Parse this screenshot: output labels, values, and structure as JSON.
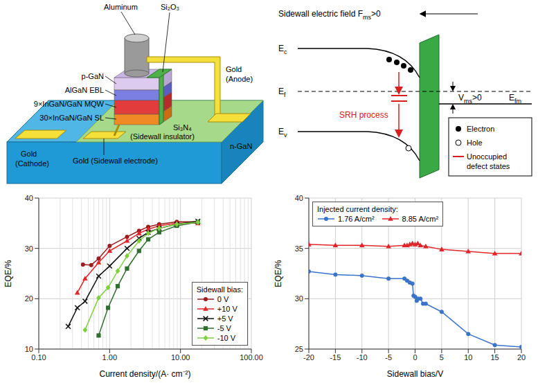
{
  "device_diagram": {
    "labels": {
      "aluminum": "Aluminum",
      "oxide": "Si₂O₃",
      "p_gan": "p-GaN",
      "ebl": "AlGaN EBL",
      "mqw": "9×InGaN/GaN MQW",
      "sl": "30×InGaN/GaN SL",
      "insulator": "Si₃N₄",
      "insulator_note": "(Sidewall insulator)",
      "anode": "Gold",
      "anode_note": "(Anode)",
      "cathode": "Gold",
      "cathode_note": "(Cathode)",
      "sidewall": "Gold (Sidewall electrode)",
      "substrate": "n-GaN"
    }
  },
  "band_diagram": {
    "field_label": [
      {
        "text": "Sidewall electric field F"
      },
      {
        "text": "ms",
        "sub": true
      },
      {
        "text": ">0"
      }
    ],
    "conduction": [
      {
        "text": "E"
      },
      {
        "text": "c",
        "sub": true
      }
    ],
    "fermi": [
      {
        "text": "E"
      },
      {
        "text": "f",
        "sub": true
      }
    ],
    "valence": [
      {
        "text": "E"
      },
      {
        "text": "v",
        "sub": true
      }
    ],
    "metal_fermi": [
      {
        "text": "E"
      },
      {
        "text": "fm",
        "sub": true
      }
    ],
    "voltage": [
      {
        "text": "V"
      },
      {
        "text": "ms",
        "sub": true
      },
      {
        "text": ">0"
      }
    ],
    "process": "SRH process",
    "key_entries": [
      "Electron",
      "Hole",
      "Unoccupied defect states"
    ]
  },
  "chart_data": [
    {
      "type": "line",
      "x_label": "Current density/(A· cm⁻²)",
      "y_label": "EQE/%",
      "log": "x",
      "xlim": [
        0.1,
        100
      ],
      "xticks": [
        {
          "value": 0.1,
          "label": "0.10"
        },
        {
          "value": 1,
          "label": "1.00"
        },
        {
          "value": 10,
          "label": "10.00"
        },
        {
          "value": 100,
          "label": "100.00"
        }
      ],
      "ylim": [
        10,
        40
      ],
      "yticks": [
        10,
        20,
        30,
        40
      ],
      "grid": true,
      "legend": "lower right",
      "legend_title": "Sidewall bias:",
      "series": [
        {
          "name": "0 V",
          "color": "#9b1c1c",
          "marker": "circle",
          "x": [
            0.42,
            0.55,
            0.7,
            1.0,
            1.76,
            2.6,
            3.5,
            5.0,
            8.85,
            17.6
          ],
          "values": [
            26.8,
            26.7,
            28.0,
            30.5,
            32.3,
            33.5,
            34.3,
            34.8,
            35.3,
            35.3
          ]
        },
        {
          "name": "+10 V",
          "color": "#e0262b",
          "marker": "triangle",
          "x": [
            0.35,
            0.45,
            0.7,
            1.0,
            1.76,
            2.6,
            3.5,
            5.0,
            8.85,
            17.6
          ],
          "values": [
            21.2,
            24.0,
            27.2,
            29.5,
            31.5,
            33.0,
            33.8,
            34.5,
            35.0,
            35.0
          ]
        },
        {
          "name": "+5 V",
          "color": "#111111",
          "marker": "x",
          "x": [
            0.26,
            0.35,
            0.45,
            0.7,
            1.0,
            1.76,
            2.6,
            3.5,
            5.0,
            8.85,
            17.6
          ],
          "values": [
            14.5,
            18.2,
            19.5,
            24.5,
            26.5,
            30.0,
            32.0,
            33.2,
            34.0,
            34.8,
            35.4
          ]
        },
        {
          "name": "-5 V",
          "color": "#2f6e2f",
          "marker": "square",
          "x": [
            0.7,
            0.95,
            1.3,
            1.76,
            2.6,
            3.5,
            5.0,
            8.85,
            17.6
          ],
          "values": [
            12.7,
            18.2,
            22.5,
            26.0,
            29.5,
            31.8,
            33.2,
            34.5,
            35.2
          ]
        },
        {
          "name": "-10 V",
          "color": "#7fcf3f",
          "marker": "diamond",
          "x": [
            0.45,
            0.7,
            0.95,
            1.3,
            1.76,
            2.6,
            3.5,
            5.0,
            8.85,
            17.6
          ],
          "values": [
            13.8,
            20.2,
            22.2,
            25.5,
            28.5,
            31.5,
            33.0,
            34.0,
            34.8,
            35.2
          ]
        }
      ]
    },
    {
      "type": "line",
      "x_label": "Sidewall bias/V",
      "y_label": "EQE/%",
      "xlim": [
        -20,
        20
      ],
      "xticks": [
        -20,
        -15,
        -10,
        -5,
        0,
        5,
        10,
        15,
        20
      ],
      "ylim": [
        25,
        40
      ],
      "yticks": [
        25,
        30,
        35,
        40
      ],
      "grid": true,
      "legend": "upper left",
      "legend_title": "Injected current density:",
      "series": [
        {
          "name": "1.76 A/cm²",
          "color": "#3b73c8",
          "marker": "circle",
          "x": [
            -20,
            -15,
            -10,
            -5,
            -2,
            -1.5,
            -1,
            -0.5,
            -0.3,
            0,
            0.3,
            0.5,
            1,
            1.5,
            2,
            5,
            10,
            15,
            20
          ],
          "values": [
            32.7,
            32.4,
            32.3,
            32.0,
            32.0,
            31.8,
            31.6,
            31.5,
            30.3,
            30.2,
            29.8,
            30.0,
            30.0,
            29.5,
            29.5,
            28.7,
            26.5,
            25.4,
            25.2
          ]
        },
        {
          "name": "8.85 A/cm²",
          "color": "#e0262b",
          "marker": "triangle",
          "x": [
            -20,
            -15,
            -10,
            -5,
            -2,
            -1.5,
            -1,
            -0.5,
            0,
            0.5,
            1,
            2,
            5,
            10,
            15,
            20
          ],
          "values": [
            35.4,
            35.3,
            35.3,
            35.2,
            35.3,
            35.3,
            35.4,
            35.5,
            35.4,
            35.5,
            35.3,
            35.2,
            34.9,
            34.7,
            34.5,
            34.5
          ]
        }
      ]
    }
  ]
}
